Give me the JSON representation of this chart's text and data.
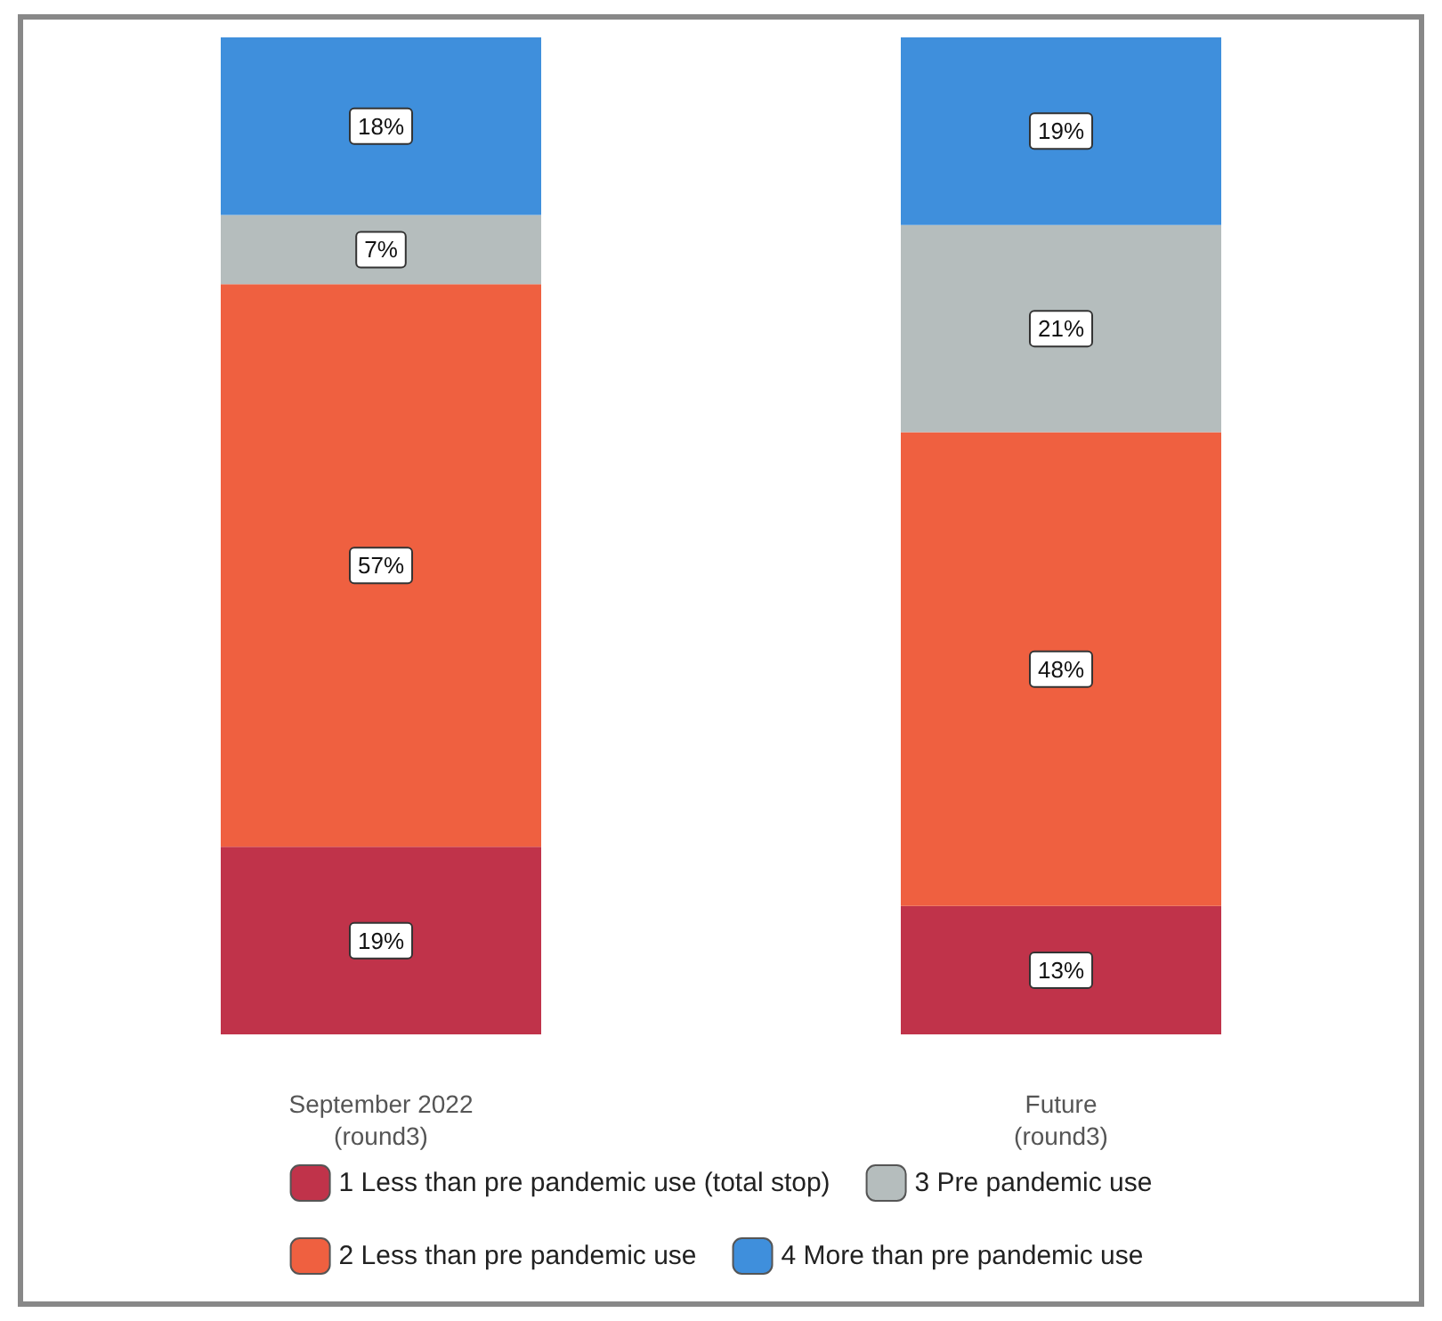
{
  "chart_data": {
    "type": "bar",
    "categories": [
      "September 2022\n(round3)",
      "Future\n(round3)"
    ],
    "stacked": true,
    "series": [
      {
        "name": "1 Less than pre pandemic use (total stop)",
        "color": "#c0334a",
        "values": [
          19,
          13
        ],
        "value_labels": [
          "19%",
          "13%"
        ]
      },
      {
        "name": "2 Less than pre pandemic use",
        "color": "#ef6040",
        "values": [
          57,
          48
        ],
        "value_labels": [
          "57%",
          "48%"
        ]
      },
      {
        "name": "3 Pre pandemic use",
        "color": "#b5bdbd",
        "values": [
          7,
          21
        ],
        "value_labels": [
          "7%",
          "21%"
        ]
      },
      {
        "name": "4 More than pre pandemic use",
        "color": "#3f8fdc",
        "values": [
          18,
          19
        ],
        "value_labels": [
          "18%",
          "19%"
        ]
      }
    ],
    "legend": "bottom"
  }
}
